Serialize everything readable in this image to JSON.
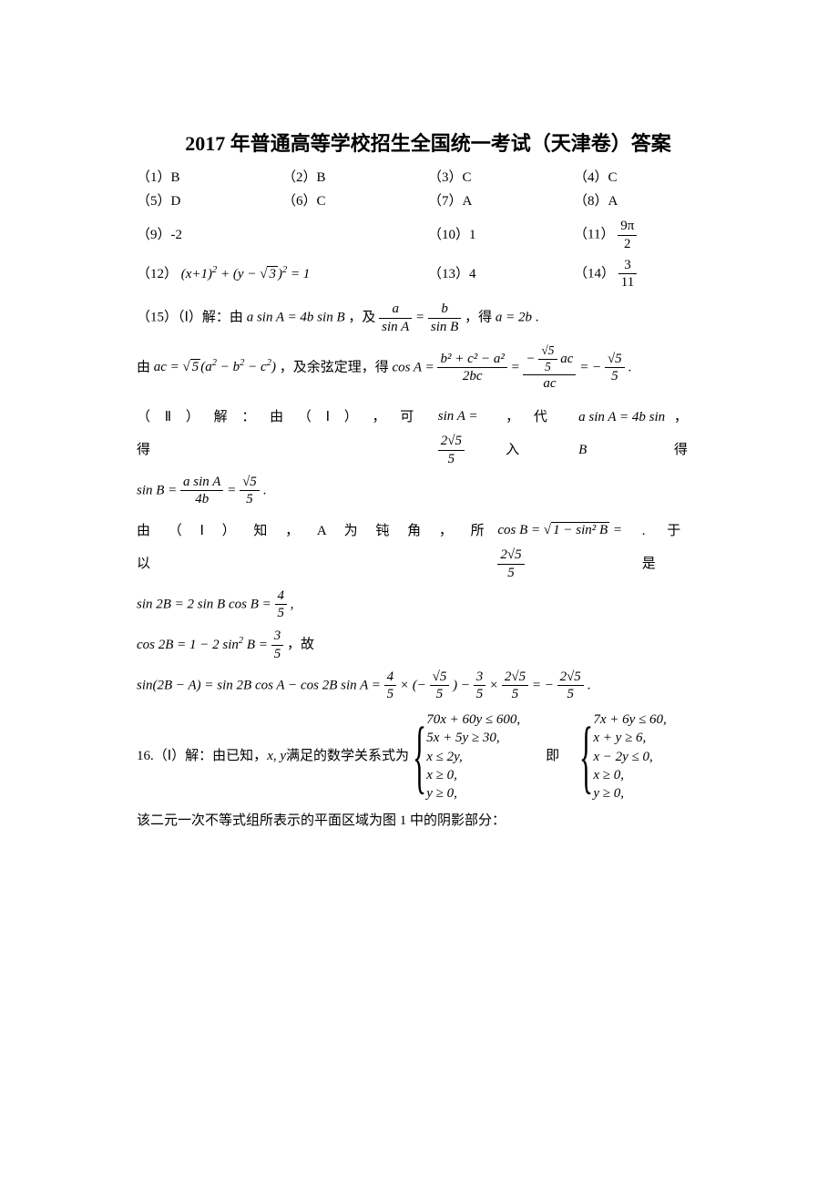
{
  "title": "2017 年普通高等学校招生全国统一考试（天津卷）答案",
  "answers": {
    "a1": "（1）B",
    "a2": "（2）B",
    "a3": "（3）C",
    "a4": "（4）C",
    "a5": "（5）D",
    "a6": "（6）C",
    "a7": "（7）A",
    "a8": "（8）A",
    "a9": "（9）-2",
    "a10": "（10）1",
    "a11_label": "（11）",
    "a11_num": "9π",
    "a11_den": "2",
    "a12": "（12）",
    "a12_eq_lhs_1": "(x+1)",
    "a12_eq_sup1": "2",
    "a12_eq_mid": " + (y − ",
    "a12_eq_sqrt": "3",
    "a12_eq_close": ")",
    "a12_eq_sup2": "2",
    "a12_eq_rhs": " = 1",
    "a13": "（13）4",
    "a14_label": "（14）",
    "a14_num": "3",
    "a14_den": "11"
  },
  "q15": {
    "line1_pre": "（15）（Ⅰ）解：由 ",
    "line1_eq1": "a sin A = 4b sin B",
    "line1_mid": "，及 ",
    "line1_frac1_num": "a",
    "line1_frac1_den": "sin A",
    "line1_eqs": " = ",
    "line1_frac2_num": "b",
    "line1_frac2_den": "sin B",
    "line1_post": "，得 a = 2b .",
    "line2_pre": "由 ",
    "line2_ac": "ac = ",
    "line2_sqrt": "5",
    "line2_paren": "(a",
    "line2_s1": "2",
    "line2_m": " − b",
    "line2_s2": "2",
    "line2_m2": " − c",
    "line2_s3": "2",
    "line2_close": ")",
    "line2_mid": "，及余弦定理，得 ",
    "line2_cos": "cos A = ",
    "line2_f1_num": "b² + c² − a²",
    "line2_f1_den": "2bc",
    "line2_eq": " = ",
    "line2_f2_num_top": "√5",
    "line2_f2_num_pre": "− ",
    "line2_f2_num_bot": "5",
    "line2_f2_num_suf": " ac",
    "line2_f2_den": "ac",
    "line2_eq2": " = − ",
    "line2_f3_num": "√5",
    "line2_f3_den": "5",
    "line2_end": ".",
    "line3_pre": "（ Ⅱ ） 解 ： 由 （ Ⅰ ） ， 可 得",
    "line3_sin": "sin A = ",
    "line3_f_num": "2√5",
    "line3_f_den": "5",
    "line3_mid": " ， 代 入",
    "line3_eq": "a sin A = 4b sin B",
    "line3_post": " ， 得",
    "line4_pre": "sin B = ",
    "line4_f1_num": "a sin A",
    "line4_f1_den": "4b",
    "line4_eq": " = ",
    "line4_f2_num": "√5",
    "line4_f2_den": "5",
    "line4_end": ".",
    "line5_pre": "由 （ Ⅰ ） 知 ， A  为 钝 角 ， 所 以",
    "line5_cos": "cos B = ",
    "line5_sqrt_inner": "1 − sin² B",
    "line5_eq": " = ",
    "line5_f_num": "2√5",
    "line5_f_den": "5",
    "line5_post": ".  于 是",
    "line6_pre": "sin 2B = 2 sin B cos B = ",
    "line6_num": "4",
    "line6_den": "5",
    "line6_end": " ,",
    "line7_pre": "cos 2B = 1 − 2 sin",
    "line7_sup": "2",
    "line7_mid": " B = ",
    "line7_num": "3",
    "line7_den": "5",
    "line7_end": "，故",
    "line8_pre": "sin(2B − A) = sin 2B cos A − cos 2B sin A = ",
    "line8_f1n": "4",
    "line8_f1d": "5",
    "line8_m1": " × (− ",
    "line8_f2n": "√5",
    "line8_f2d": "5",
    "line8_m2": ") − ",
    "line8_f3n": "3",
    "line8_f3d": "5",
    "line8_m3": " × ",
    "line8_f4n": "2√5",
    "line8_f4d": "5",
    "line8_m4": " = − ",
    "line8_f5n": "2√5",
    "line8_f5d": "5",
    "line8_end": "."
  },
  "q16": {
    "pre": "16.（Ⅰ）解：由已知，",
    "xy": "x, y",
    "mid": " 满足的数学关系式为 ",
    "sys1": {
      "r1": "70x + 60y ≤ 600,",
      "r2": "5x + 5y ≥ 30,",
      "r3": "x ≤ 2y,",
      "r4": "x ≥ 0,",
      "r5": "y ≥ 0,"
    },
    "between": "即",
    "sys2": {
      "r1": "7x + 6y ≤ 60,",
      "r2": "x + y ≥ 6,",
      "r3": "x − 2y ≤ 0,",
      "r4": "x ≥ 0,",
      "r5": "y ≥ 0,"
    },
    "last": "该二元一次不等式组所表示的平面区域为图 1 中的阴影部分："
  }
}
